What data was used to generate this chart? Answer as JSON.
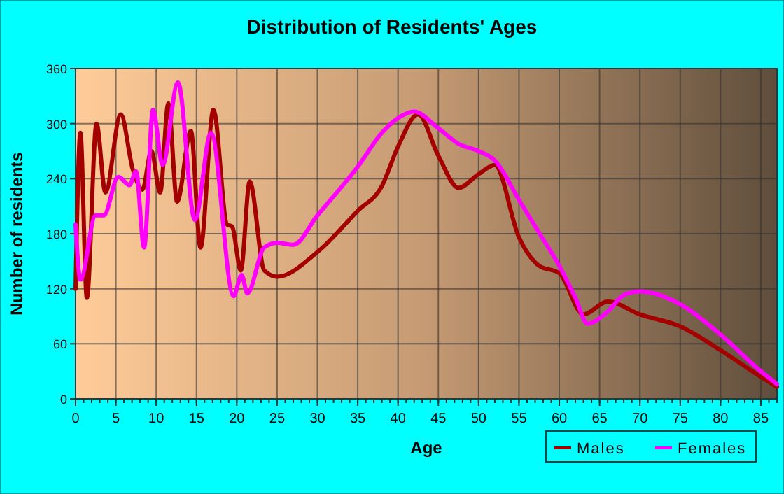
{
  "chart_data": {
    "type": "line",
    "title": "Distribution of Residents' Ages",
    "xlabel": "Age",
    "ylabel": "Number of residents",
    "xlim": [
      0,
      87
    ],
    "xticks": [
      0,
      5,
      10,
      15,
      20,
      25,
      30,
      35,
      40,
      45,
      50,
      55,
      60,
      65,
      70,
      75,
      80,
      85
    ],
    "ylim": [
      0,
      360
    ],
    "yticks": [
      0,
      60,
      120,
      180,
      240,
      300,
      360
    ],
    "grid": true,
    "legend": "bottom right",
    "marker": "none",
    "line_style": "solid",
    "series": [
      {
        "name": "Males",
        "color": "#a50000",
        "x": [
          0,
          0.6,
          1.4,
          2.6,
          3.7,
          5.6,
          7.1,
          8.3,
          9.4,
          10.5,
          11.5,
          12.6,
          14.3,
          15.5,
          17.1,
          18.8,
          19.4,
          20.5,
          21.6,
          23.4,
          25,
          30,
          35,
          38,
          40,
          42.5,
          45,
          47.5,
          50,
          52,
          55,
          57.5,
          60,
          63,
          66,
          70,
          75,
          80,
          85,
          87
        ],
        "values": [
          120,
          290,
          110,
          300,
          225,
          310,
          250,
          228,
          270,
          225,
          322,
          215,
          292,
          165,
          315,
          190,
          188,
          140,
          237,
          140,
          133,
          160,
          205,
          232,
          275,
          310,
          265,
          230,
          245,
          255,
          176,
          145,
          137,
          92,
          106,
          92,
          79,
          53,
          24,
          13
        ]
      },
      {
        "name": "Females",
        "color": "#ff00ff",
        "x": [
          0,
          0.6,
          2.5,
          3.5,
          5.3,
          6.7,
          7.5,
          8.5,
          9.6,
          10.8,
          12.7,
          14.8,
          16.8,
          19.6,
          20.6,
          21.3,
          23.4,
          25,
          27,
          30,
          35,
          38,
          40,
          42,
          45,
          47.5,
          50,
          52,
          55,
          57.5,
          60,
          62,
          63.5,
          66,
          68,
          70,
          75,
          80,
          85,
          87
        ],
        "values": [
          190,
          130,
          200,
          200,
          242,
          233,
          248,
          165,
          315,
          255,
          345,
          195,
          290,
          112,
          135,
          115,
          165,
          170,
          168,
          200,
          253,
          290,
          306,
          313,
          295,
          278,
          270,
          260,
          217,
          181,
          145,
          110,
          82,
          95,
          113,
          117,
          103,
          70,
          30,
          16
        ]
      }
    ]
  }
}
